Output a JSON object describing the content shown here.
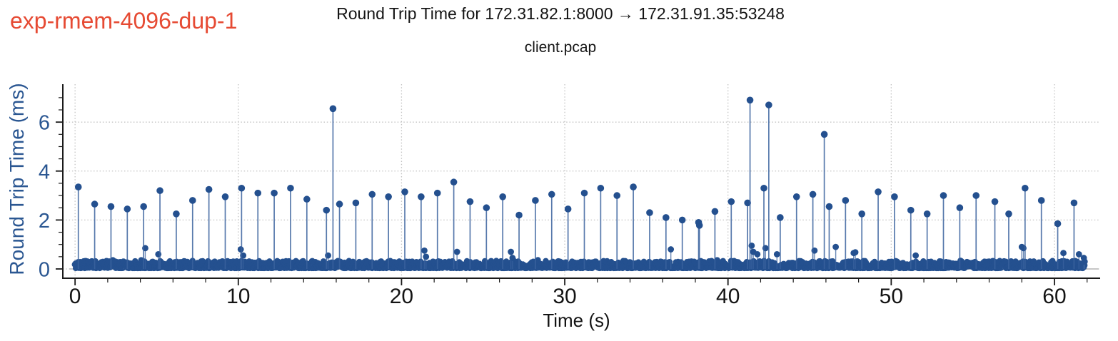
{
  "header": {
    "experiment_label": "exp-rmem-4096-dup-1",
    "experiment_label_color": "#e64a33"
  },
  "chart_data": {
    "type": "stem",
    "title": "Round Trip Time for 172.31.82.1:8000 → 172.31.91.35:53248",
    "subtitle": "client.pcap",
    "xlabel": "Time (s)",
    "ylabel": "Round Trip Time (ms)",
    "xlim": [
      -0.75,
      62.8
    ],
    "ylim": [
      -0.35,
      7.55
    ],
    "xticks": [
      0,
      10,
      20,
      30,
      40,
      50,
      60
    ],
    "xtick_minor_step": 2,
    "yticks": [
      0,
      2,
      4,
      6
    ],
    "ytick_minor_step": 0.5,
    "grid": "dotted-at-major-ticks",
    "legend": "none",
    "series_name": "rtt_ms",
    "spikes": [
      [
        0.2,
        3.35
      ],
      [
        1.2,
        2.65
      ],
      [
        2.2,
        2.55
      ],
      [
        3.2,
        2.45
      ],
      [
        4.2,
        2.55
      ],
      [
        5.2,
        3.2
      ],
      [
        6.2,
        2.25
      ],
      [
        7.2,
        2.8
      ],
      [
        8.2,
        3.25
      ],
      [
        9.2,
        2.95
      ],
      [
        10.2,
        3.3
      ],
      [
        11.2,
        3.1
      ],
      [
        12.2,
        3.1
      ],
      [
        13.2,
        3.3
      ],
      [
        14.2,
        2.85
      ],
      [
        15.4,
        2.4
      ],
      [
        15.8,
        6.55
      ],
      [
        16.2,
        2.65
      ],
      [
        17.2,
        2.7
      ],
      [
        18.2,
        3.05
      ],
      [
        19.2,
        2.95
      ],
      [
        20.2,
        3.15
      ],
      [
        21.2,
        2.95
      ],
      [
        22.2,
        3.1
      ],
      [
        23.2,
        3.55
      ],
      [
        24.2,
        2.75
      ],
      [
        25.2,
        2.5
      ],
      [
        26.2,
        2.95
      ],
      [
        27.2,
        2.2
      ],
      [
        28.2,
        2.8
      ],
      [
        29.2,
        3.05
      ],
      [
        30.2,
        2.45
      ],
      [
        31.2,
        3.1
      ],
      [
        32.2,
        3.3
      ],
      [
        33.2,
        3.0
      ],
      [
        34.2,
        3.35
      ],
      [
        35.2,
        2.3
      ],
      [
        36.2,
        2.1
      ],
      [
        37.2,
        2.0
      ],
      [
        38.2,
        1.9
      ],
      [
        38.25,
        1.78
      ],
      [
        39.2,
        2.35
      ],
      [
        40.2,
        2.75
      ],
      [
        41.2,
        2.7
      ],
      [
        41.35,
        6.9
      ],
      [
        42.2,
        3.3
      ],
      [
        42.5,
        6.7
      ],
      [
        43.2,
        2.1
      ],
      [
        44.2,
        2.95
      ],
      [
        45.2,
        3.05
      ],
      [
        45.9,
        5.5
      ],
      [
        46.2,
        2.55
      ],
      [
        47.2,
        2.8
      ],
      [
        48.2,
        2.25
      ],
      [
        49.2,
        3.15
      ],
      [
        50.2,
        2.95
      ],
      [
        51.2,
        2.4
      ],
      [
        52.2,
        2.25
      ],
      [
        53.2,
        3.0
      ],
      [
        54.2,
        2.5
      ],
      [
        55.2,
        3.0
      ],
      [
        56.35,
        2.75
      ],
      [
        57.2,
        2.25
      ],
      [
        58.2,
        3.3
      ],
      [
        59.2,
        2.8
      ],
      [
        60.2,
        1.85
      ],
      [
        61.2,
        2.7
      ]
    ],
    "small_spikes": [
      [
        4.3,
        0.85
      ],
      [
        5.1,
        0.6
      ],
      [
        10.15,
        0.8
      ],
      [
        10.3,
        0.55
      ],
      [
        15.5,
        0.55
      ],
      [
        21.4,
        0.75
      ],
      [
        21.5,
        0.5
      ],
      [
        23.4,
        0.7
      ],
      [
        26.7,
        0.7
      ],
      [
        26.8,
        0.45
      ],
      [
        36.5,
        0.8
      ],
      [
        41.45,
        0.95
      ],
      [
        41.55,
        0.7
      ],
      [
        41.8,
        0.6
      ],
      [
        42.3,
        0.85
      ],
      [
        43.0,
        0.6
      ],
      [
        45.3,
        0.75
      ],
      [
        46.6,
        0.9
      ],
      [
        47.7,
        0.65
      ],
      [
        47.8,
        0.68
      ],
      [
        51.5,
        0.55
      ],
      [
        58.0,
        0.9
      ],
      [
        58.1,
        0.85
      ],
      [
        60.55,
        0.65
      ],
      [
        61.5,
        0.6
      ],
      [
        61.8,
        0.45
      ],
      [
        61.85,
        0.3
      ]
    ],
    "baseline_band": {
      "t_min": 0.0,
      "t_max": 61.85,
      "rtt_min": 0.03,
      "rtt_max": 0.33,
      "approx_points": 2600,
      "description": "dense band of per-packet RTT samples near 0 ms"
    },
    "colors": {
      "marker": "#24508f",
      "stem": "#39619e",
      "axis_label_blue": "#2b5792",
      "tick_label_x": "#141414",
      "title": "#141414",
      "grid": "#c3c3c3",
      "stem_baseline": "#c6c6c6",
      "spine": "#1a1a1a"
    }
  }
}
